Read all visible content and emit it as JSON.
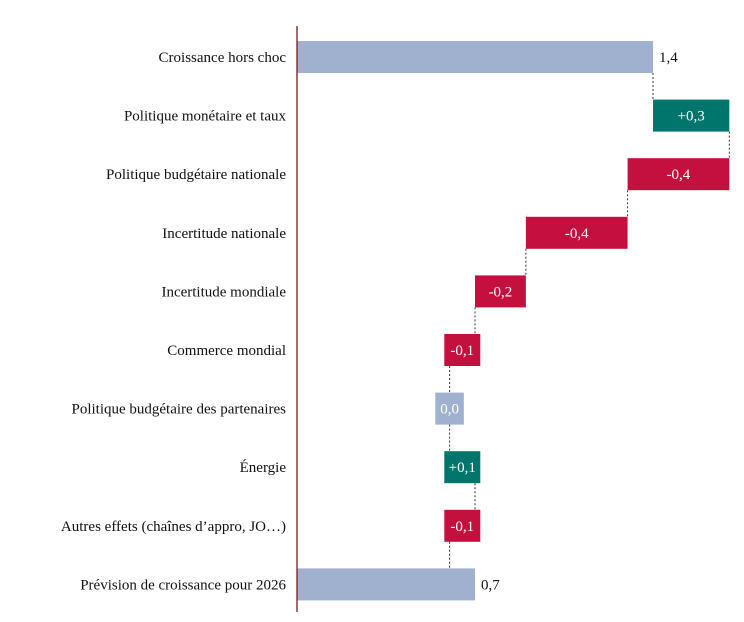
{
  "chart_data": {
    "type": "waterfall",
    "title": "",
    "xlabel": "",
    "ylabel": "",
    "unit": "points",
    "categories": [
      "Croissance hors choc",
      "Politique monétaire et taux",
      "Politique budgétaire nationale",
      "Incertitude nationale",
      "Incertitude mondiale",
      "Commerce mondial",
      "Politique budgétaire des partenaires",
      "Énergie",
      "Autres effets (chaînes d’appro, JO…)",
      "Prévision de croissance pour 2026"
    ],
    "values": [
      1.4,
      0.3,
      -0.4,
      -0.4,
      -0.2,
      -0.1,
      0.0,
      0.1,
      -0.1,
      0.7
    ],
    "value_labels": [
      "1,4",
      "+0,3",
      "-0,4",
      "-0,4",
      "-0,2",
      "-0,1",
      "0,0",
      "+0,1",
      "-0,1",
      "0,7"
    ],
    "kinds": [
      "total",
      "delta",
      "delta",
      "delta",
      "delta",
      "delta",
      "delta",
      "delta",
      "delta",
      "total"
    ],
    "xlim": [
      0,
      1.75
    ],
    "colors": {
      "total": "#9fb1cf",
      "positive": "#00756c",
      "negative": "#c4103f",
      "neutral": "#9fb1cf",
      "axis": "#7a1a1a",
      "connector": "#333333"
    }
  }
}
